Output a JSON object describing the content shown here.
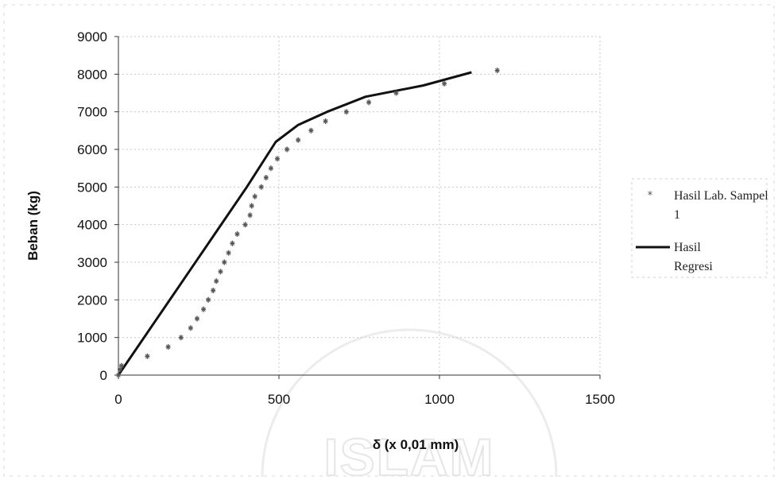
{
  "chart_data": {
    "type": "line",
    "xlabel": "δ (x 0,01 mm)",
    "ylabel": "Beban (kg)",
    "xlim": [
      0,
      1500
    ],
    "ylim": [
      0,
      9000
    ],
    "xticks": [
      0,
      500,
      1000,
      1500
    ],
    "yticks": [
      0,
      1000,
      2000,
      3000,
      4000,
      5000,
      6000,
      7000,
      8000,
      9000
    ],
    "grid": true,
    "legend_position": "right",
    "series": [
      {
        "name": "Hasil Lab. Sampel 1",
        "mode": "markers",
        "color": "#555555",
        "points": [
          [
            0,
            0
          ],
          [
            5,
            150
          ],
          [
            10,
            250
          ],
          [
            90,
            500
          ],
          [
            155,
            750
          ],
          [
            195,
            1000
          ],
          [
            225,
            1250
          ],
          [
            245,
            1500
          ],
          [
            265,
            1750
          ],
          [
            280,
            2000
          ],
          [
            295,
            2250
          ],
          [
            305,
            2500
          ],
          [
            318,
            2750
          ],
          [
            330,
            3000
          ],
          [
            343,
            3250
          ],
          [
            355,
            3500
          ],
          [
            370,
            3750
          ],
          [
            395,
            4000
          ],
          [
            410,
            4250
          ],
          [
            415,
            4500
          ],
          [
            425,
            4750
          ],
          [
            445,
            5000
          ],
          [
            460,
            5250
          ],
          [
            475,
            5500
          ],
          [
            495,
            5750
          ],
          [
            525,
            6000
          ],
          [
            560,
            6250
          ],
          [
            600,
            6500
          ],
          [
            645,
            6750
          ],
          [
            710,
            7000
          ],
          [
            780,
            7250
          ],
          [
            865,
            7500
          ],
          [
            1015,
            7750
          ],
          [
            1180,
            8100
          ]
        ]
      },
      {
        "name": "Hasil Regresi",
        "mode": "line",
        "color": "#111111",
        "points": [
          [
            0,
            0
          ],
          [
            100,
            1250
          ],
          [
            200,
            2500
          ],
          [
            300,
            3750
          ],
          [
            400,
            5000
          ],
          [
            490,
            6200
          ],
          [
            560,
            6650
          ],
          [
            650,
            7000
          ],
          [
            770,
            7400
          ],
          [
            950,
            7700
          ],
          [
            1100,
            8050
          ]
        ]
      }
    ]
  },
  "watermark": {
    "text": "ISLAM"
  }
}
